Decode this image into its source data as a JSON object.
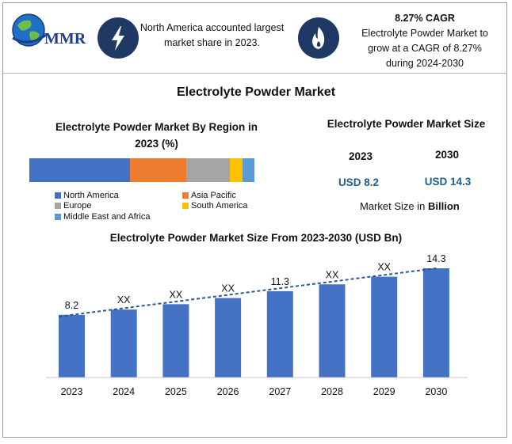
{
  "brand": {
    "logo_text": "MMR"
  },
  "header": {
    "info_left": "North America accounted largest market share in 2023.",
    "cagr_title": "8.27% CAGR",
    "cagr_text": "Electrolyte Powder Market to grow at a CAGR of 8.27% during 2024-2030",
    "icons": [
      "lightning-icon",
      "flame-icon"
    ]
  },
  "main_title": "Electrolyte Powder Market",
  "region_panel": {
    "title": "Electrolyte Powder Market By Region in 2023 (%)",
    "legend": [
      {
        "name": "North America",
        "color": "#4472c4",
        "share": 41
      },
      {
        "name": "Asia Pacific",
        "color": "#ed7d31",
        "share": 23
      },
      {
        "name": "Europe",
        "color": "#a5a5a5",
        "share": 18
      },
      {
        "name": "South America",
        "color": "#ffc000",
        "share": 5
      },
      {
        "name": "Middle East and Africa",
        "color": "#5b9bd5",
        "share": 5
      }
    ]
  },
  "size_panel": {
    "title": "Electrolyte Powder Market Size",
    "year_a": "2023",
    "year_b": "2030",
    "value_a": "USD 8.2",
    "value_b": "USD 14.3",
    "note_prefix": "Market Size in ",
    "note_unit": "Billion"
  },
  "chart_data": {
    "type": "bar",
    "title": "Electrolyte Powder Market Size From 2023-2030 (USD Bn)",
    "categories": [
      "2023",
      "2024",
      "2025",
      "2026",
      "2027",
      "2028",
      "2029",
      "2030"
    ],
    "values": [
      8.2,
      8.9,
      9.6,
      10.4,
      11.3,
      12.2,
      13.2,
      14.3
    ],
    "data_labels": [
      "8.2",
      "XX",
      "XX",
      "XX",
      "11.3",
      "XX",
      "XX",
      "14.3"
    ],
    "trendline": true,
    "grid": false,
    "bar_color": "#4472c4"
  }
}
